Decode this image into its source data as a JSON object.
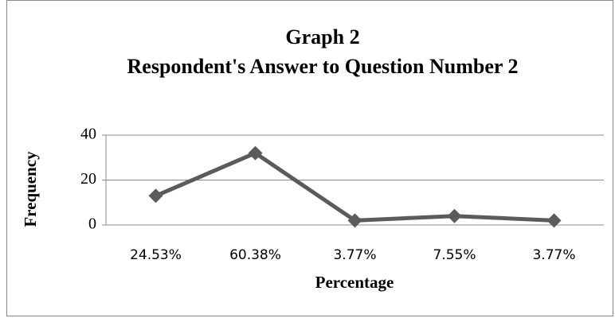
{
  "chart_data": {
    "type": "line",
    "title": "Graph 2",
    "subtitle": "Respondent's Answer to Question Number 2",
    "x_label": "Percentage",
    "y_label": "Frequency",
    "categories": [
      "24.53%",
      "60.38%",
      "3.77%",
      "7.55%",
      "3.77%"
    ],
    "series": [
      {
        "name": "Frequency",
        "color": "#5b5b5b",
        "values": [
          13,
          32,
          2,
          4,
          2
        ]
      }
    ],
    "ylim": [
      0,
      40
    ],
    "yticks": [
      0,
      20,
      40
    ],
    "grid": true,
    "legend": false
  }
}
